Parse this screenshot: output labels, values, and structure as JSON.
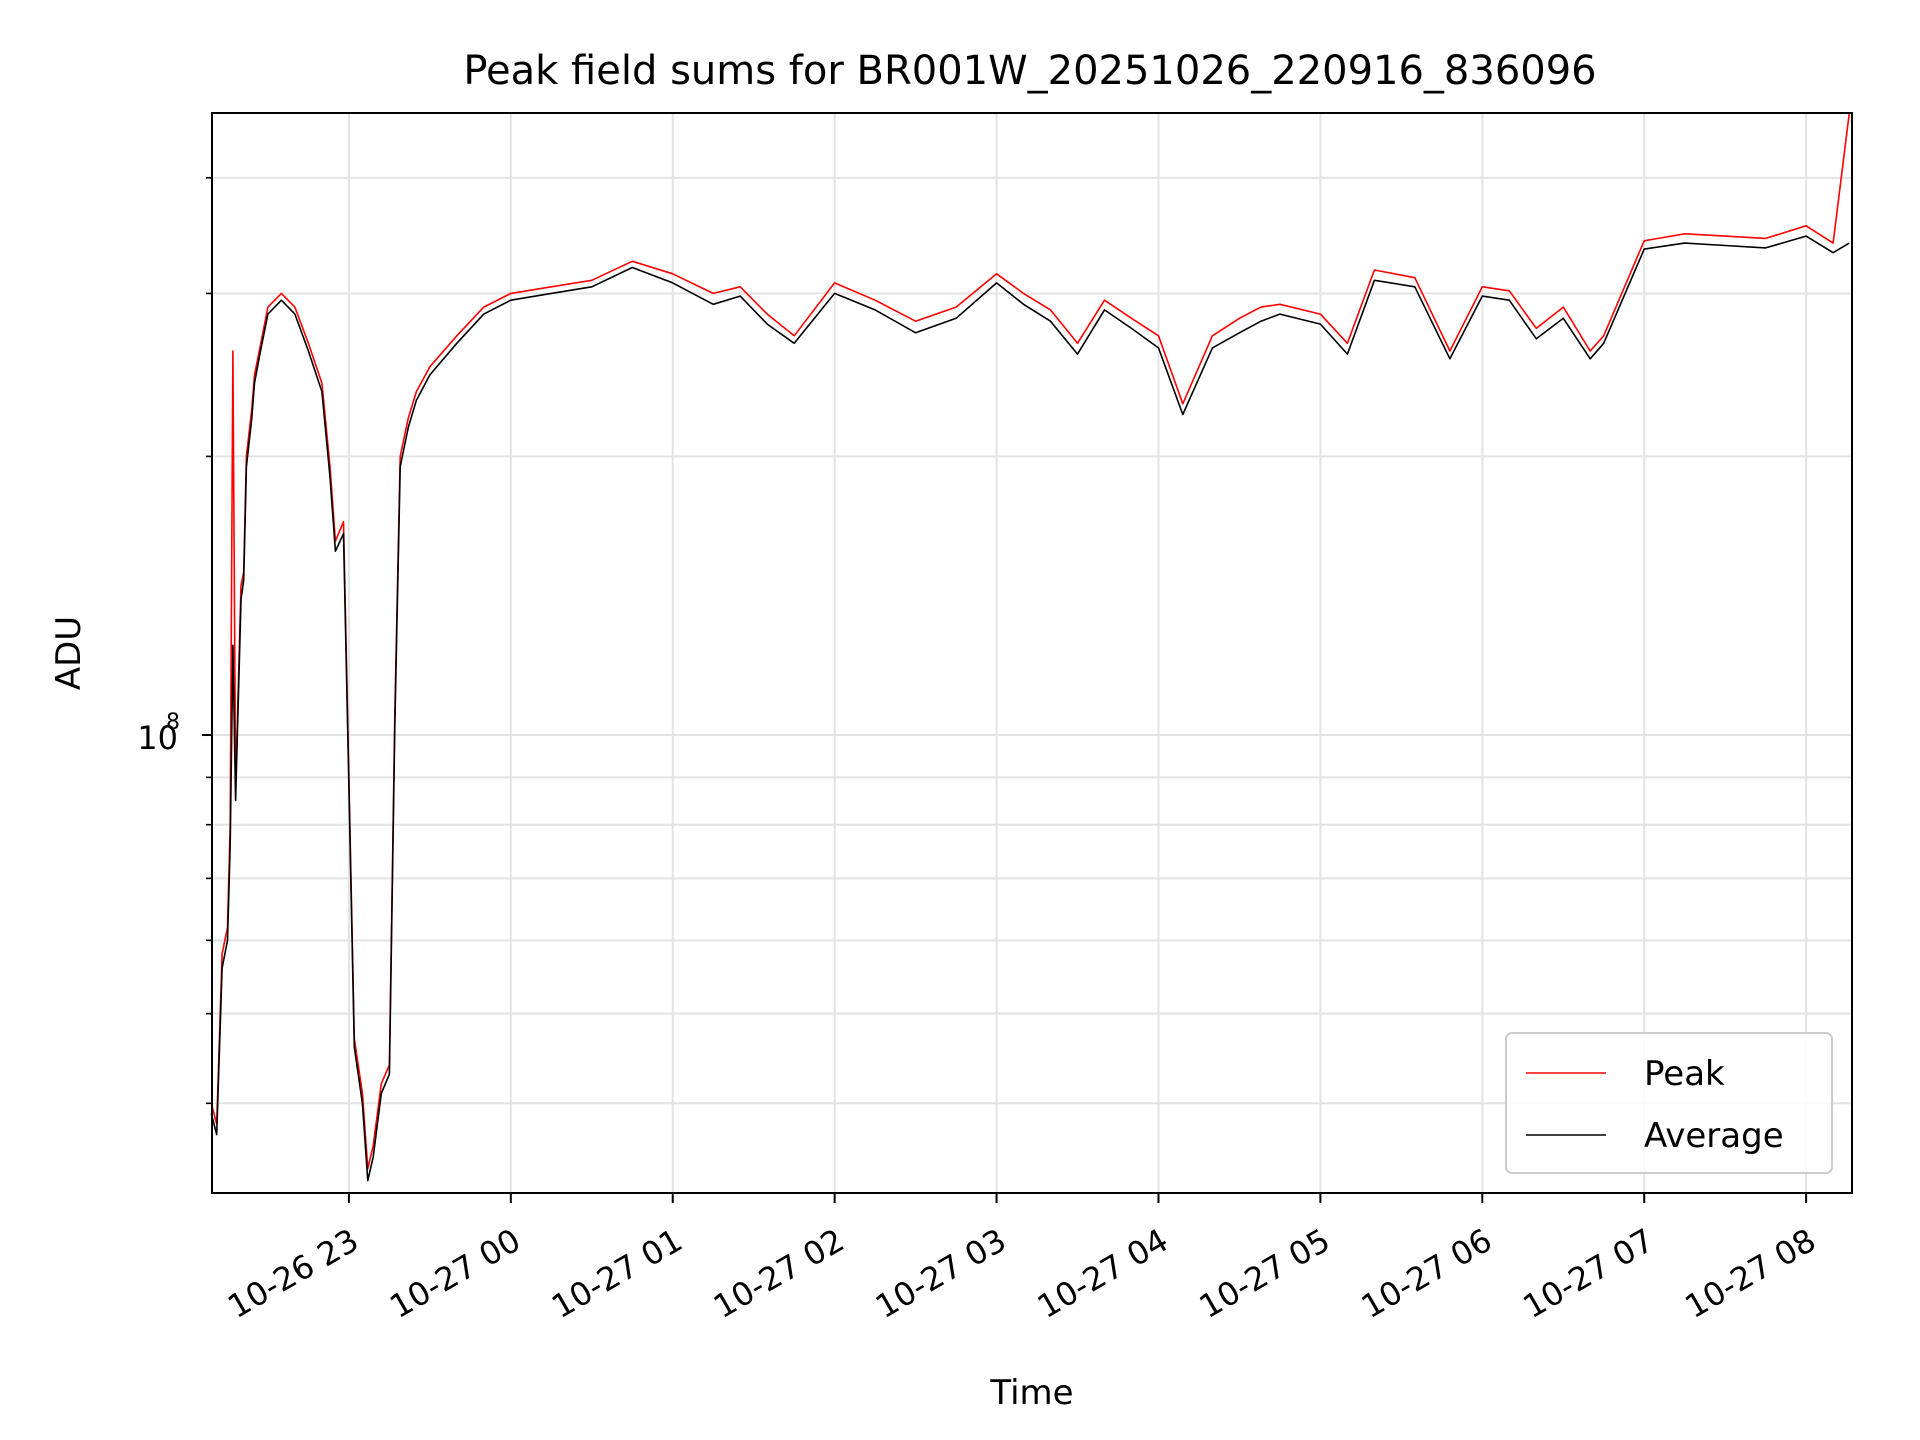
{
  "chart_data": {
    "type": "line",
    "title": "Peak field sums for BR001W_20251026_220916_836096",
    "xlabel": "Time",
    "ylabel": "ADU",
    "y_scale": "log",
    "ylim": [
      32000000,
      470000000
    ],
    "xlim": [
      "2025-10-26 22:09:16",
      "2025-10-27 08:17:00"
    ],
    "grid": true,
    "legend_position": "lower-right",
    "x_tick_labels": [
      "10-26 23",
      "10-27 00",
      "10-27 01",
      "10-27 02",
      "10-27 03",
      "10-27 04",
      "10-27 05",
      "10-27 06",
      "10-27 07",
      "10-27 08"
    ],
    "x_tick_values": [
      "2025-10-26 23:00",
      "2025-10-27 00:00",
      "2025-10-27 01:00",
      "2025-10-27 02:00",
      "2025-10-27 03:00",
      "2025-10-27 04:00",
      "2025-10-27 05:00",
      "2025-10-27 06:00",
      "2025-10-27 07:00",
      "2025-10-27 08:00"
    ],
    "y_major_ticks": [
      {
        "value": 100000000,
        "label": "10",
        "exponent": "8"
      }
    ],
    "y_minor_ticks": [
      40000000,
      50000000,
      60000000,
      70000000,
      80000000,
      90000000,
      200000000,
      300000000,
      400000000
    ],
    "series": [
      {
        "name": "Peak",
        "color": "#ff0000",
        "x": [
          "2025-10-26 22:09",
          "2025-10-26 22:11",
          "2025-10-26 22:13",
          "2025-10-26 22:15",
          "2025-10-26 22:16",
          "2025-10-26 22:17",
          "2025-10-26 22:18",
          "2025-10-26 22:20",
          "2025-10-26 22:21",
          "2025-10-26 22:22",
          "2025-10-26 22:24",
          "2025-10-26 22:25",
          "2025-10-26 22:27",
          "2025-10-26 22:30",
          "2025-10-26 22:35",
          "2025-10-26 22:40",
          "2025-10-26 22:45",
          "2025-10-26 22:50",
          "2025-10-26 22:53",
          "2025-10-26 22:55",
          "2025-10-26 22:58",
          "2025-10-26 23:00",
          "2025-10-26 23:02",
          "2025-10-26 23:05",
          "2025-10-26 23:07",
          "2025-10-26 23:09",
          "2025-10-26 23:12",
          "2025-10-26 23:15",
          "2025-10-26 23:17",
          "2025-10-26 23:19",
          "2025-10-26 23:22",
          "2025-10-26 23:25",
          "2025-10-26 23:30",
          "2025-10-26 23:40",
          "2025-10-26 23:50",
          "2025-10-27 00:00",
          "2025-10-27 00:15",
          "2025-10-27 00:30",
          "2025-10-27 00:45",
          "2025-10-27 01:00",
          "2025-10-27 01:15",
          "2025-10-27 01:25",
          "2025-10-27 01:35",
          "2025-10-27 01:45",
          "2025-10-27 02:00",
          "2025-10-27 02:15",
          "2025-10-27 02:30",
          "2025-10-27 02:45",
          "2025-10-27 03:00",
          "2025-10-27 03:10",
          "2025-10-27 03:20",
          "2025-10-27 03:30",
          "2025-10-27 03:40",
          "2025-10-27 03:50",
          "2025-10-27 04:00",
          "2025-10-27 04:09",
          "2025-10-27 04:20",
          "2025-10-27 04:30",
          "2025-10-27 04:38",
          "2025-10-27 04:45",
          "2025-10-27 05:00",
          "2025-10-27 05:10",
          "2025-10-27 05:20",
          "2025-10-27 05:35",
          "2025-10-27 05:48",
          "2025-10-27 06:00",
          "2025-10-27 06:10",
          "2025-10-27 06:20",
          "2025-10-27 06:30",
          "2025-10-27 06:40",
          "2025-10-27 06:45",
          "2025-10-27 07:00",
          "2025-10-27 07:15",
          "2025-10-27 07:30",
          "2025-10-27 07:45",
          "2025-10-27 08:00",
          "2025-10-27 08:10",
          "2025-10-27 08:16"
        ],
        "values": [
          40000000,
          38000000,
          58000000,
          62000000,
          80000000,
          260000000,
          88000000,
          145000000,
          150000000,
          200000000,
          225000000,
          245000000,
          262000000,
          290000000,
          300000000,
          290000000,
          265000000,
          240000000,
          195000000,
          162000000,
          170000000,
          90000000,
          47000000,
          41000000,
          34000000,
          36000000,
          42000000,
          44000000,
          105000000,
          200000000,
          220000000,
          235000000,
          250000000,
          270000000,
          290000000,
          300000000,
          305000000,
          310000000,
          325000000,
          315000000,
          300000000,
          305000000,
          285000000,
          270000000,
          308000000,
          295000000,
          280000000,
          290000000,
          315000000,
          300000000,
          288000000,
          265000000,
          295000000,
          282000000,
          270000000,
          228000000,
          270000000,
          282000000,
          290000000,
          292000000,
          285000000,
          265000000,
          318000000,
          312000000,
          260000000,
          305000000,
          302000000,
          275000000,
          290000000,
          260000000,
          270000000,
          342000000,
          348000000,
          346000000,
          344000000,
          355000000,
          340000000,
          470000000
        ]
      },
      {
        "name": "Average",
        "color": "#000000",
        "x": [
          "2025-10-26 22:09",
          "2025-10-26 22:11",
          "2025-10-26 22:13",
          "2025-10-26 22:15",
          "2025-10-26 22:16",
          "2025-10-26 22:17",
          "2025-10-26 22:18",
          "2025-10-26 22:20",
          "2025-10-26 22:21",
          "2025-10-26 22:22",
          "2025-10-26 22:24",
          "2025-10-26 22:25",
          "2025-10-26 22:27",
          "2025-10-26 22:30",
          "2025-10-26 22:35",
          "2025-10-26 22:40",
          "2025-10-26 22:45",
          "2025-10-26 22:50",
          "2025-10-26 22:53",
          "2025-10-26 22:55",
          "2025-10-26 22:58",
          "2025-10-26 23:00",
          "2025-10-26 23:02",
          "2025-10-26 23:05",
          "2025-10-26 23:07",
          "2025-10-26 23:09",
          "2025-10-26 23:12",
          "2025-10-26 23:15",
          "2025-10-26 23:17",
          "2025-10-26 23:19",
          "2025-10-26 23:22",
          "2025-10-26 23:25",
          "2025-10-26 23:30",
          "2025-10-26 23:40",
          "2025-10-26 23:50",
          "2025-10-27 00:00",
          "2025-10-27 00:15",
          "2025-10-27 00:30",
          "2025-10-27 00:45",
          "2025-10-27 01:00",
          "2025-10-27 01:15",
          "2025-10-27 01:25",
          "2025-10-27 01:35",
          "2025-10-27 01:45",
          "2025-10-27 02:00",
          "2025-10-27 02:15",
          "2025-10-27 02:30",
          "2025-10-27 02:45",
          "2025-10-27 03:00",
          "2025-10-27 03:10",
          "2025-10-27 03:20",
          "2025-10-27 03:30",
          "2025-10-27 03:40",
          "2025-10-27 03:50",
          "2025-10-27 04:00",
          "2025-10-27 04:09",
          "2025-10-27 04:20",
          "2025-10-27 04:30",
          "2025-10-27 04:38",
          "2025-10-27 04:45",
          "2025-10-27 05:00",
          "2025-10-27 05:10",
          "2025-10-27 05:20",
          "2025-10-27 05:35",
          "2025-10-27 05:48",
          "2025-10-27 06:00",
          "2025-10-27 06:10",
          "2025-10-27 06:20",
          "2025-10-27 06:30",
          "2025-10-27 06:40",
          "2025-10-27 06:45",
          "2025-10-27 07:00",
          "2025-10-27 07:15",
          "2025-10-27 07:30",
          "2025-10-27 07:45",
          "2025-10-27 08:00",
          "2025-10-27 08:10",
          "2025-10-27 08:16"
        ],
        "values": [
          39000000,
          37000000,
          56000000,
          60000000,
          76000000,
          125000000,
          85000000,
          140000000,
          147000000,
          195000000,
          220000000,
          240000000,
          258000000,
          285000000,
          295000000,
          285000000,
          260000000,
          235000000,
          190000000,
          158000000,
          165000000,
          88000000,
          46000000,
          40000000,
          33000000,
          35000000,
          41000000,
          43000000,
          102000000,
          195000000,
          215000000,
          230000000,
          245000000,
          265000000,
          285000000,
          295000000,
          300000000,
          305000000,
          320000000,
          308000000,
          292000000,
          298000000,
          278000000,
          265000000,
          300000000,
          288000000,
          272000000,
          282000000,
          308000000,
          292000000,
          280000000,
          258000000,
          288000000,
          275000000,
          262000000,
          222000000,
          262000000,
          272000000,
          280000000,
          285000000,
          278000000,
          258000000,
          310000000,
          305000000,
          255000000,
          298000000,
          295000000,
          268000000,
          282000000,
          255000000,
          265000000,
          335000000,
          340000000,
          338000000,
          336000000,
          346000000,
          332000000,
          340000000
        ]
      }
    ]
  }
}
